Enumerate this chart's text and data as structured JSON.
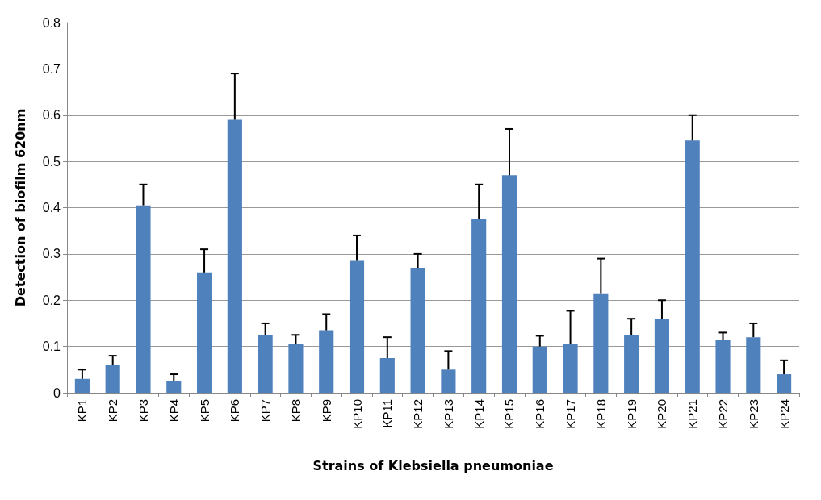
{
  "chart_data": {
    "type": "bar",
    "xlabel": "Strains of Klebsiella pneumoniae",
    "ylabel": "Detection of biofilm 620nm",
    "categories": [
      "KP1",
      "KP2",
      "KP3",
      "KP4",
      "KP5",
      "KP6",
      "KP7",
      "KP8",
      "KP9",
      "KP10",
      "KP11",
      "KP12",
      "KP13",
      "KP14",
      "KP15",
      "KP16",
      "KP17",
      "KP18",
      "KP19",
      "KP20",
      "KP21",
      "KP22",
      "KP23",
      "KP24"
    ],
    "values": [
      0.03,
      0.06,
      0.405,
      0.025,
      0.26,
      0.59,
      0.125,
      0.105,
      0.135,
      0.285,
      0.075,
      0.27,
      0.05,
      0.375,
      0.47,
      0.1,
      0.105,
      0.215,
      0.125,
      0.16,
      0.545,
      0.115,
      0.12,
      0.04
    ],
    "errors": [
      [
        0.03,
        0.05
      ],
      [
        0.06,
        0.08
      ],
      [
        0.405,
        0.45
      ],
      [
        0.025,
        0.04
      ],
      [
        0.26,
        0.31
      ],
      [
        0.59,
        0.69
      ],
      [
        0.125,
        0.15
      ],
      [
        0.105,
        0.125
      ],
      [
        0.135,
        0.17
      ],
      [
        0.285,
        0.34
      ],
      [
        0.075,
        0.12
      ],
      [
        0.27,
        0.3
      ],
      [
        0.05,
        0.09
      ],
      [
        0.375,
        0.45
      ],
      [
        0.47,
        0.57
      ],
      [
        0.1,
        0.123
      ],
      [
        0.105,
        0.177
      ],
      [
        0.215,
        0.29
      ],
      [
        0.125,
        0.16
      ],
      [
        0.16,
        0.2
      ],
      [
        0.545,
        0.6
      ],
      [
        0.115,
        0.13
      ],
      [
        0.12,
        0.15
      ],
      [
        0.04,
        0.07
      ]
    ],
    "color": "#4f81bd",
    "ylim": [
      0,
      0.8
    ],
    "yticks": [
      0,
      0.1,
      0.2,
      0.3,
      0.4,
      0.5,
      0.6,
      0.7,
      0.8
    ],
    "grid": "y"
  }
}
